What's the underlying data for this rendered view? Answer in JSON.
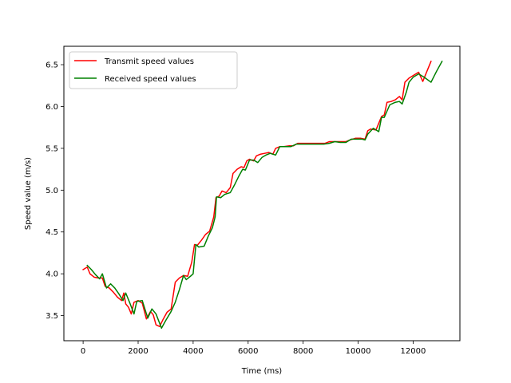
{
  "chart_data": {
    "type": "line",
    "title": "",
    "xlabel": "Time (ms)",
    "ylabel": "Speed value (m/s)",
    "xlim": [
      -700,
      13700
    ],
    "ylim": [
      3.2,
      6.72
    ],
    "xticks": [
      0,
      2000,
      4000,
      6000,
      8000,
      10000,
      12000
    ],
    "yticks": [
      3.5,
      4.0,
      4.5,
      5.0,
      5.5,
      6.0,
      6.5
    ],
    "xtick_labels": [
      "0",
      "2000",
      "4000",
      "6000",
      "8000",
      "10000",
      "12000"
    ],
    "ytick_labels": [
      "3.5",
      "4.0",
      "4.5",
      "5.0",
      "5.5",
      "6.0",
      "6.5"
    ],
    "grid": false,
    "legend_position": "top-left",
    "series": [
      {
        "name": "Transmit speed values",
        "color": "#ff0000",
        "points": [
          [
            0,
            4.05
          ],
          [
            150,
            4.08
          ],
          [
            250,
            4.0
          ],
          [
            400,
            3.96
          ],
          [
            550,
            3.95
          ],
          [
            700,
            3.95
          ],
          [
            800,
            3.85
          ],
          [
            950,
            3.83
          ],
          [
            1100,
            3.78
          ],
          [
            1250,
            3.72
          ],
          [
            1400,
            3.68
          ],
          [
            1480,
            3.77
          ],
          [
            1550,
            3.64
          ],
          [
            1650,
            3.6
          ],
          [
            1750,
            3.52
          ],
          [
            1850,
            3.66
          ],
          [
            2000,
            3.68
          ],
          [
            2150,
            3.65
          ],
          [
            2300,
            3.46
          ],
          [
            2450,
            3.55
          ],
          [
            2550,
            3.51
          ],
          [
            2650,
            3.39
          ],
          [
            2780,
            3.37
          ],
          [
            2900,
            3.45
          ],
          [
            3050,
            3.54
          ],
          [
            3200,
            3.58
          ],
          [
            3350,
            3.9
          ],
          [
            3500,
            3.95
          ],
          [
            3650,
            3.98
          ],
          [
            3800,
            3.97
          ],
          [
            3950,
            4.14
          ],
          [
            4050,
            4.35
          ],
          [
            4150,
            4.34
          ],
          [
            4300,
            4.4
          ],
          [
            4450,
            4.47
          ],
          [
            4600,
            4.51
          ],
          [
            4750,
            4.68
          ],
          [
            4830,
            4.91
          ],
          [
            4950,
            4.93
          ],
          [
            5050,
            4.99
          ],
          [
            5200,
            4.97
          ],
          [
            5350,
            5.03
          ],
          [
            5450,
            5.2
          ],
          [
            5600,
            5.25
          ],
          [
            5750,
            5.28
          ],
          [
            5850,
            5.27
          ],
          [
            5950,
            5.35
          ],
          [
            6050,
            5.37
          ],
          [
            6200,
            5.35
          ],
          [
            6300,
            5.41
          ],
          [
            6450,
            5.43
          ],
          [
            6600,
            5.44
          ],
          [
            6750,
            5.45
          ],
          [
            6900,
            5.43
          ],
          [
            7000,
            5.5
          ],
          [
            7150,
            5.52
          ],
          [
            7300,
            5.52
          ],
          [
            7500,
            5.53
          ],
          [
            7650,
            5.53
          ],
          [
            7800,
            5.56
          ],
          [
            8000,
            5.56
          ],
          [
            8200,
            5.56
          ],
          [
            8400,
            5.56
          ],
          [
            8600,
            5.56
          ],
          [
            8800,
            5.56
          ],
          [
            8950,
            5.58
          ],
          [
            9150,
            5.58
          ],
          [
            9350,
            5.58
          ],
          [
            9550,
            5.58
          ],
          [
            9700,
            5.6
          ],
          [
            9900,
            5.62
          ],
          [
            10100,
            5.62
          ],
          [
            10250,
            5.61
          ],
          [
            10350,
            5.71
          ],
          [
            10450,
            5.73
          ],
          [
            10650,
            5.72
          ],
          [
            10850,
            5.88
          ],
          [
            10950,
            5.9
          ],
          [
            11050,
            6.05
          ],
          [
            11200,
            6.06
          ],
          [
            11350,
            6.08
          ],
          [
            11500,
            6.12
          ],
          [
            11600,
            6.08
          ],
          [
            11700,
            6.29
          ],
          [
            11850,
            6.34
          ],
          [
            12050,
            6.38
          ],
          [
            12200,
            6.41
          ],
          [
            12350,
            6.3
          ],
          [
            12500,
            6.42
          ],
          [
            12650,
            6.54
          ]
        ]
      },
      {
        "name": "Received speed values",
        "color": "#008000",
        "points": [
          [
            150,
            4.1
          ],
          [
            300,
            4.05
          ],
          [
            450,
            3.99
          ],
          [
            600,
            3.94
          ],
          [
            700,
            4.0
          ],
          [
            850,
            3.83
          ],
          [
            1000,
            3.88
          ],
          [
            1150,
            3.83
          ],
          [
            1300,
            3.76
          ],
          [
            1450,
            3.68
          ],
          [
            1550,
            3.77
          ],
          [
            1700,
            3.65
          ],
          [
            1850,
            3.52
          ],
          [
            1950,
            3.67
          ],
          [
            2150,
            3.68
          ],
          [
            2350,
            3.47
          ],
          [
            2500,
            3.58
          ],
          [
            2650,
            3.52
          ],
          [
            2850,
            3.35
          ],
          [
            3000,
            3.44
          ],
          [
            3200,
            3.55
          ],
          [
            3350,
            3.66
          ],
          [
            3500,
            3.81
          ],
          [
            3650,
            3.98
          ],
          [
            3750,
            3.93
          ],
          [
            3900,
            3.97
          ],
          [
            4000,
            4.0
          ],
          [
            4100,
            4.35
          ],
          [
            4200,
            4.32
          ],
          [
            4400,
            4.33
          ],
          [
            4550,
            4.45
          ],
          [
            4700,
            4.55
          ],
          [
            4800,
            4.68
          ],
          [
            4850,
            4.92
          ],
          [
            5000,
            4.91
          ],
          [
            5150,
            4.95
          ],
          [
            5350,
            4.97
          ],
          [
            5500,
            5.06
          ],
          [
            5650,
            5.16
          ],
          [
            5800,
            5.25
          ],
          [
            5900,
            5.24
          ],
          [
            6050,
            5.36
          ],
          [
            6200,
            5.36
          ],
          [
            6350,
            5.33
          ],
          [
            6500,
            5.39
          ],
          [
            6650,
            5.42
          ],
          [
            6800,
            5.44
          ],
          [
            7000,
            5.42
          ],
          [
            7150,
            5.52
          ],
          [
            7350,
            5.52
          ],
          [
            7550,
            5.52
          ],
          [
            7750,
            5.55
          ],
          [
            7950,
            5.55
          ],
          [
            8150,
            5.55
          ],
          [
            8350,
            5.55
          ],
          [
            8550,
            5.55
          ],
          [
            8750,
            5.55
          ],
          [
            8950,
            5.56
          ],
          [
            9150,
            5.58
          ],
          [
            9350,
            5.57
          ],
          [
            9550,
            5.57
          ],
          [
            9750,
            5.61
          ],
          [
            9950,
            5.61
          ],
          [
            10150,
            5.61
          ],
          [
            10250,
            5.6
          ],
          [
            10350,
            5.67
          ],
          [
            10550,
            5.74
          ],
          [
            10750,
            5.7
          ],
          [
            10850,
            5.87
          ],
          [
            10950,
            5.87
          ],
          [
            11150,
            6.02
          ],
          [
            11350,
            6.05
          ],
          [
            11500,
            6.06
          ],
          [
            11600,
            6.03
          ],
          [
            11750,
            6.17
          ],
          [
            11850,
            6.29
          ],
          [
            12000,
            6.35
          ],
          [
            12200,
            6.39
          ],
          [
            12400,
            6.35
          ],
          [
            12650,
            6.29
          ],
          [
            12850,
            6.42
          ],
          [
            13050,
            6.54
          ]
        ]
      }
    ]
  }
}
